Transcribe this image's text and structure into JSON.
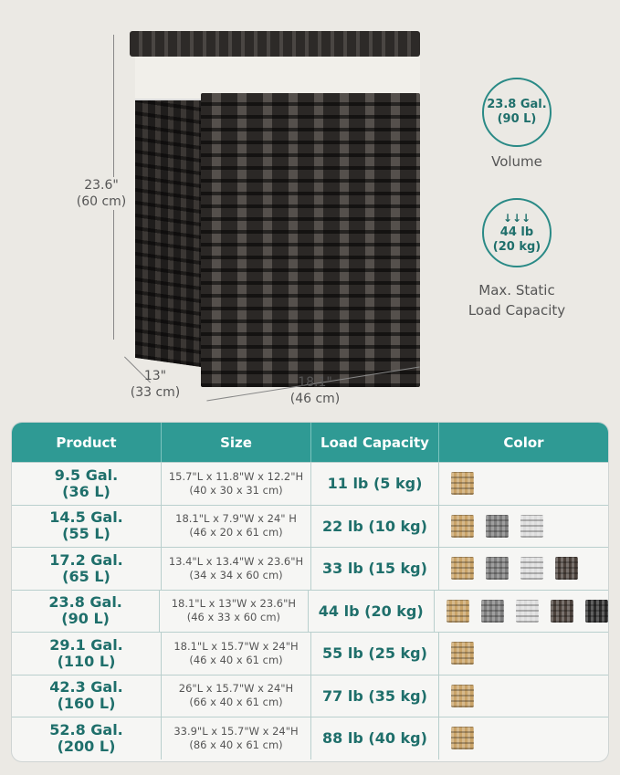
{
  "dimensions": {
    "height": "23.6\"",
    "height_cm": "(60 cm)",
    "depth": "13\"",
    "depth_cm": "(33 cm)",
    "width": "18.1\"",
    "width_cm": "(46 cm)"
  },
  "volume": {
    "line1": "23.8 Gal.",
    "line2": "(90 L)",
    "caption": "Volume"
  },
  "load": {
    "icon": "down-arrows-icon",
    "arrows": "↓↓↓",
    "line1": "44 lb",
    "line2": "(20 kg)",
    "caption1": "Max. Static",
    "caption2": "Load Capacity"
  },
  "table": {
    "headers": [
      "Product",
      "Size",
      "Load Capacity",
      "Color"
    ],
    "swatch_colors": {
      "natural": "#c9a368",
      "gray": "#7f7f7f",
      "white": "#dcdcdc",
      "brown": "#4b413b",
      "black": "#2b2b2b"
    },
    "rows": [
      {
        "gal": "9.5 Gal.",
        "l": "(36 L)",
        "size1": "15.7\"L x 11.8\"W x 12.2\"H",
        "size2": "(40 x 30 x 31 cm)",
        "load": "11 lb (5 kg)",
        "colors": [
          "natural"
        ]
      },
      {
        "gal": "14.5 Gal.",
        "l": "(55 L)",
        "size1": "18.1\"L x 7.9\"W x 24\" H",
        "size2": "(46 x 20 x 61 cm)",
        "load": "22 lb (10 kg)",
        "colors": [
          "natural",
          "gray",
          "white"
        ]
      },
      {
        "gal": "17.2 Gal.",
        "l": "(65 L)",
        "size1": "13.4\"L x 13.4\"W x 23.6\"H",
        "size2": "(34 x 34 x 60 cm)",
        "load": "33 lb (15 kg)",
        "colors": [
          "natural",
          "gray",
          "white",
          "brown"
        ]
      },
      {
        "gal": "23.8 Gal.",
        "l": "(90 L)",
        "size1": "18.1\"L x 13\"W x 23.6\"H",
        "size2": "(46 x 33 x 60 cm)",
        "load": "44 lb (20 kg)",
        "colors": [
          "natural",
          "gray",
          "white",
          "brown",
          "black"
        ]
      },
      {
        "gal": "29.1 Gal.",
        "l": "(110 L)",
        "size1": "18.1\"L x 15.7\"W x 24\"H",
        "size2": "(46 x 40 x 61 cm)",
        "load": "55 lb (25 kg)",
        "colors": [
          "natural"
        ]
      },
      {
        "gal": "42.3 Gal.",
        "l": "(160 L)",
        "size1": "26\"L x 15.7\"W x 24\"H",
        "size2": "(66 x 40 x 61 cm)",
        "load": "77 lb (35 kg)",
        "colors": [
          "natural"
        ]
      },
      {
        "gal": "52.8 Gal.",
        "l": "(200 L)",
        "size1": "33.9\"L x 15.7\"W x 24\"H",
        "size2": "(86 x 40 x 61 cm)",
        "load": "88 lb (40 kg)",
        "colors": [
          "natural"
        ]
      }
    ]
  }
}
